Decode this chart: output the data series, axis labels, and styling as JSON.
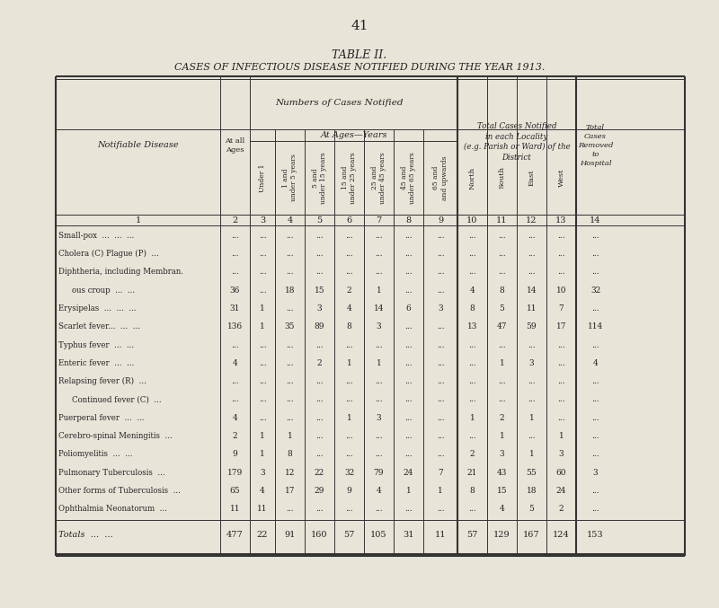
{
  "page_number": "41",
  "title1": "TABLE II.",
  "title2": "CASES OF INFECTIOUS DISEASE NOTIFIED DURING THE YEAR 1913.",
  "bg_color": "#e8e4d8",
  "col_numbers": [
    "1",
    "2",
    "3",
    "4",
    "5",
    "6",
    "7",
    "8",
    "9",
    "10",
    "11",
    "12",
    "13",
    "14"
  ],
  "rows": [
    {
      "disease": "Small-pox  ...  ...  ...",
      "indent": false,
      "values": [
        "...",
        "...",
        "...",
        "...",
        "...",
        "...",
        "...",
        "...",
        "...",
        "...",
        "...",
        "...",
        "..."
      ]
    },
    {
      "disease": "Cholera (C) Plague (P)  ...",
      "indent": false,
      "values": [
        "...",
        "...",
        "...",
        "...",
        "...",
        "...",
        "...",
        "...",
        "...",
        "...",
        "...",
        "...",
        "..."
      ]
    },
    {
      "disease": "Diphtheria, including Membran.",
      "indent": false,
      "values": [
        "...",
        "...",
        "...",
        "...",
        "...",
        "...",
        "...",
        "...",
        "...",
        "...",
        "...",
        "...",
        "..."
      ]
    },
    {
      "disease": "ous croup  ...  ...",
      "indent": true,
      "values": [
        "36",
        "...",
        "18",
        "15",
        "2",
        "1",
        "...",
        "...",
        "4",
        "8",
        "14",
        "10",
        "32"
      ]
    },
    {
      "disease": "Erysipelas  ...  ...  ...",
      "indent": false,
      "values": [
        "31",
        "1",
        "...",
        "3",
        "4",
        "14",
        "6",
        "3",
        "8",
        "5",
        "11",
        "7",
        "..."
      ]
    },
    {
      "disease": "Scarlet fever...  ...  ...",
      "indent": false,
      "values": [
        "136",
        "1",
        "35",
        "89",
        "8",
        "3",
        "...",
        "...",
        "13",
        "47",
        "59",
        "17",
        "114"
      ]
    },
    {
      "disease": "Typhus fever  ...  ...",
      "indent": false,
      "values": [
        "...",
        "...",
        "...",
        "...",
        "...",
        "...",
        "...",
        "...",
        "...",
        "...",
        "...",
        "...",
        "..."
      ]
    },
    {
      "disease": "Enteric fever  ...  ...",
      "indent": false,
      "values": [
        "4",
        "...",
        "...",
        "2",
        "1",
        "1",
        "...",
        "...",
        "...",
        "1",
        "3",
        "...",
        "4"
      ]
    },
    {
      "disease": "Relapsing fever (R)  ...",
      "indent": false,
      "values": [
        "...",
        "...",
        "...",
        "...",
        "...",
        "...",
        "...",
        "...",
        "...",
        "...",
        "...",
        "...",
        "..."
      ]
    },
    {
      "disease": "Continued fever (C)  ...",
      "indent": true,
      "values": [
        "...",
        "...",
        "...",
        "...",
        "...",
        "...",
        "...",
        "...",
        "...",
        "...",
        "...",
        "...",
        "..."
      ]
    },
    {
      "disease": "Puerperal fever  ...  ...",
      "indent": false,
      "values": [
        "4",
        "...",
        "...",
        "...",
        "1",
        "3",
        "...",
        "...",
        "1",
        "2",
        "1",
        "...",
        "..."
      ]
    },
    {
      "disease": "Cerebro-spinal Meningitis  ...",
      "indent": false,
      "values": [
        "2",
        "1",
        "1",
        "...",
        "...",
        "...",
        "...",
        "...",
        "...",
        "1",
        "...",
        "1",
        "..."
      ]
    },
    {
      "disease": "Poliomyelitis  ...  ...",
      "indent": false,
      "values": [
        "9",
        "1",
        "8",
        "...",
        "...",
        "...",
        "...",
        "...",
        "2",
        "3",
        "1",
        "3",
        "..."
      ]
    },
    {
      "disease": "Pulmonary Tuberculosis  ...",
      "indent": false,
      "values": [
        "179",
        "3",
        "12",
        "22",
        "32",
        "79",
        "24",
        "7",
        "21",
        "43",
        "55",
        "60",
        "3"
      ]
    },
    {
      "disease": "Other forms of Tuberculosis  ...",
      "indent": false,
      "values": [
        "65",
        "4",
        "17",
        "29",
        "9",
        "4",
        "1",
        "1",
        "8",
        "15",
        "18",
        "24",
        "..."
      ]
    },
    {
      "disease": "Ophthalmia Neonatorum  ...",
      "indent": false,
      "values": [
        "11",
        "11",
        "...",
        "...",
        "...",
        "...",
        "...",
        "...",
        "...",
        "4",
        "5",
        "2",
        "..."
      ]
    }
  ],
  "totals_row": {
    "label": "Totals  ...  ...",
    "values": [
      "477",
      "22",
      "91",
      "160",
      "57",
      "105",
      "31",
      "11",
      "57",
      "129",
      "167",
      "124",
      "153"
    ]
  }
}
